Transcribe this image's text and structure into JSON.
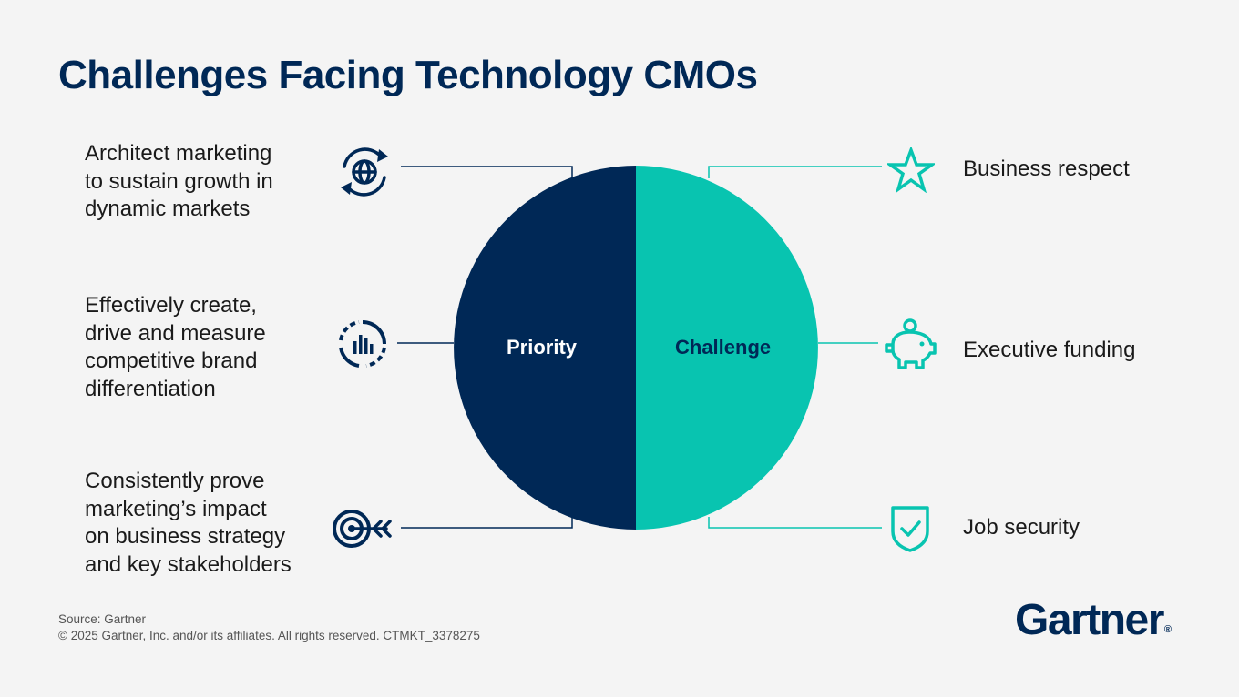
{
  "title": "Challenges Facing Technology CMOs",
  "colors": {
    "navy": "#002856",
    "teal": "#08c4b0",
    "background": "#f4f4f4"
  },
  "circle": {
    "left_label": "Priority",
    "right_label": "Challenge"
  },
  "priorities": [
    {
      "icon": "globe-sync-icon",
      "lines": [
        "Architect marketing",
        "to sustain growth in",
        "dynamic markets"
      ]
    },
    {
      "icon": "bar-chart-dial-icon",
      "lines": [
        "Effectively create,",
        "drive and measure",
        "competitive brand",
        "differentiation"
      ]
    },
    {
      "icon": "target-arrow-icon",
      "lines": [
        "Consistently prove",
        "marketing’s impact",
        "on business strategy",
        "and key stakeholders"
      ]
    }
  ],
  "challenges": [
    {
      "icon": "star-icon",
      "label": "Business respect"
    },
    {
      "icon": "piggy-bank-icon",
      "label": "Executive funding"
    },
    {
      "icon": "shield-check-icon",
      "label": "Job security"
    }
  ],
  "footer": {
    "source": "Source: Gartner",
    "copyright": "© 2025 Gartner, Inc. and/or its affiliates. All rights reserved. CTMKT_3378275"
  },
  "logo": {
    "text": "Gartner",
    "mark": "®"
  }
}
